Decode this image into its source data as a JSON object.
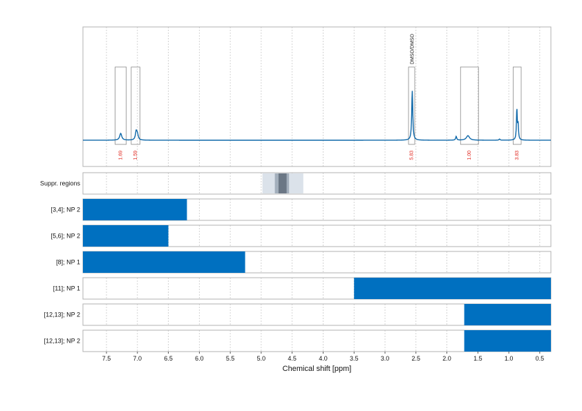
{
  "chart_data": {
    "type": "nmr-spectrum",
    "xlabel": "Chemical shift [ppm]",
    "xlim": [
      7.88,
      0.32
    ],
    "x_ticks": [
      7.5,
      7.0,
      6.5,
      6.0,
      5.5,
      5.0,
      4.5,
      4.0,
      3.5,
      3.0,
      2.5,
      2.0,
      1.5,
      1.0,
      0.5
    ],
    "x_tick_labels": [
      "7.5",
      "7.0",
      "6.5",
      "6.0",
      "5.5",
      "5.0",
      "4.5",
      "4.0",
      "3.5",
      "3.0",
      "2.5",
      "2.0",
      "1.5",
      "1.0",
      "0.5"
    ],
    "grid": true,
    "colors": {
      "spectrum": "#0b66a8",
      "bar": "#0070c0",
      "integral_label": "#e0241b",
      "region_box": "#888888",
      "panel_border": "#b0b0b0",
      "grid": "#c8c8c8",
      "suppr_light": "#dbe2ea",
      "suppr_mid": "#a3afbc",
      "suppr_dark": "#6b7785"
    },
    "baseline_noise_peaks": [
      {
        "ppm": 1.15,
        "height": 0.015
      },
      {
        "ppm": 1.85,
        "height": 0.05
      }
    ],
    "peaks": [
      {
        "ppm": 7.27,
        "height": 0.09,
        "width": 0.02
      },
      {
        "ppm": 7.02,
        "height": 0.11,
        "width": 0.015
      },
      {
        "ppm": 7.0,
        "height": 0.07,
        "width": 0.015
      },
      {
        "ppm": 2.56,
        "height": 0.65,
        "width": 0.01
      },
      {
        "ppm": 1.66,
        "height": 0.06,
        "width": 0.03
      },
      {
        "ppm": 0.87,
        "height": 0.4,
        "width": 0.008
      },
      {
        "ppm": 0.85,
        "height": 0.2,
        "width": 0.008
      }
    ],
    "integral_regions": [
      {
        "from": 7.36,
        "to": 7.18,
        "label": "1.69"
      },
      {
        "from": 7.1,
        "to": 6.96,
        "label": "1.59"
      },
      {
        "from": 2.62,
        "to": 2.52,
        "label": "5.83"
      },
      {
        "from": 1.78,
        "to": 1.49,
        "label": "1.00"
      },
      {
        "from": 0.93,
        "to": 0.8,
        "label": "3.83"
      }
    ],
    "annotations": [
      {
        "ppm": 2.56,
        "text": "DMSO/DMSO"
      }
    ],
    "suppression_regions": {
      "label": "Suppr. regions",
      "bands": [
        {
          "from": 4.98,
          "to": 4.32,
          "level": "light"
        },
        {
          "from": 4.78,
          "to": 4.55,
          "level": "mid"
        },
        {
          "from": 4.72,
          "to": 4.59,
          "level": "dark"
        }
      ]
    },
    "bar_rows": [
      {
        "label": "[3,4]; NP 2",
        "from": 7.88,
        "to": 6.2
      },
      {
        "label": "[5,6]; NP 2",
        "from": 7.88,
        "to": 6.5
      },
      {
        "label": "[8]; NP 1",
        "from": 7.88,
        "to": 5.26
      },
      {
        "label": "[11]; NP 1",
        "from": 3.5,
        "to": 0.32
      },
      {
        "label": "[12,13]; NP 2",
        "from": 1.72,
        "to": 0.32
      },
      {
        "label": "[12,13]; NP 2",
        "from": 1.72,
        "to": 0.32
      }
    ]
  }
}
